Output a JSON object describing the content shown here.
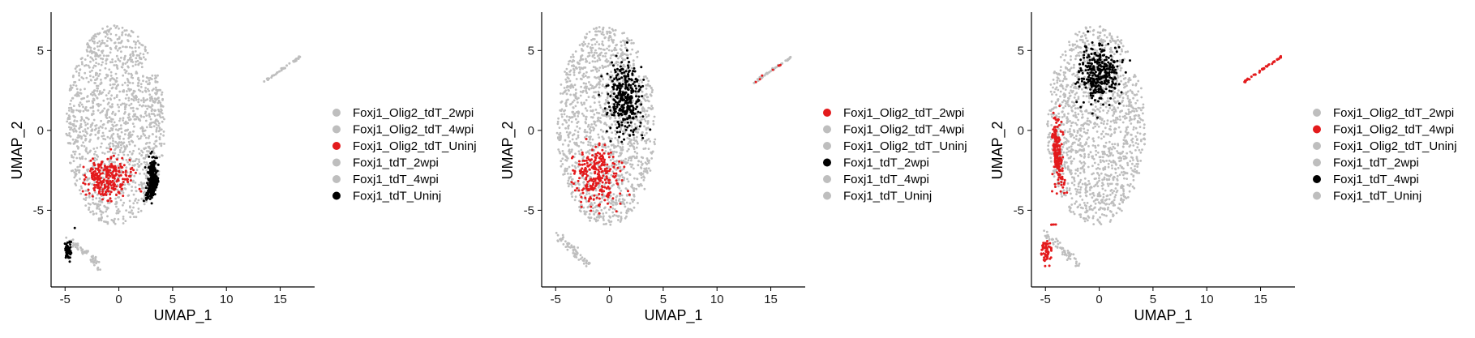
{
  "chart_data": [
    {
      "type": "scatter",
      "xlabel": "UMAP_1",
      "ylabel": "UMAP_2",
      "xlim": [
        -6.3,
        18.2
      ],
      "ylim": [
        -9.8,
        7.3
      ],
      "xticks": [
        -5,
        0,
        5,
        10,
        15
      ],
      "yticks": [
        -5,
        0,
        5
      ],
      "legend_position": "right",
      "series": [
        {
          "name": "Foxj1_Olig2_tdT_2wpi",
          "color": "#bebebe"
        },
        {
          "name": "Foxj1_Olig2_tdT_4wpi",
          "color": "#bebebe"
        },
        {
          "name": "Foxj1_Olig2_tdT_Uninj",
          "color": "#e31a1c"
        },
        {
          "name": "Foxj1_tdT_2wpi",
          "color": "#bebebe"
        },
        {
          "name": "Foxj1_tdT_4wpi",
          "color": "#bebebe"
        },
        {
          "name": "Foxj1_tdT_Uninj",
          "color": "#000000"
        }
      ]
    },
    {
      "type": "scatter",
      "xlabel": "UMAP_1",
      "ylabel": "UMAP_2",
      "xlim": [
        -6.3,
        18.2
      ],
      "ylim": [
        -9.8,
        7.3
      ],
      "xticks": [
        -5,
        0,
        5,
        10,
        15
      ],
      "yticks": [
        -5,
        0,
        5
      ],
      "legend_position": "right",
      "series": [
        {
          "name": "Foxj1_Olig2_tdT_2wpi",
          "color": "#e31a1c"
        },
        {
          "name": "Foxj1_Olig2_tdT_4wpi",
          "color": "#bebebe"
        },
        {
          "name": "Foxj1_Olig2_tdT_Uninj",
          "color": "#bebebe"
        },
        {
          "name": "Foxj1_tdT_2wpi",
          "color": "#000000"
        },
        {
          "name": "Foxj1_tdT_4wpi",
          "color": "#bebebe"
        },
        {
          "name": "Foxj1_tdT_Uninj",
          "color": "#bebebe"
        }
      ]
    },
    {
      "type": "scatter",
      "xlabel": "UMAP_1",
      "ylabel": "UMAP_2",
      "xlim": [
        -6.3,
        18.2
      ],
      "ylim": [
        -9.8,
        7.3
      ],
      "xticks": [
        -5,
        0,
        5,
        10,
        15
      ],
      "yticks": [
        -5,
        0,
        5
      ],
      "legend_position": "right",
      "series": [
        {
          "name": "Foxj1_Olig2_tdT_2wpi",
          "color": "#bebebe"
        },
        {
          "name": "Foxj1_Olig2_tdT_4wpi",
          "color": "#e31a1c"
        },
        {
          "name": "Foxj1_Olig2_tdT_Uninj",
          "color": "#bebebe"
        },
        {
          "name": "Foxj1_tdT_2wpi",
          "color": "#bebebe"
        },
        {
          "name": "Foxj1_tdT_4wpi",
          "color": "#000000"
        },
        {
          "name": "Foxj1_tdT_Uninj",
          "color": "#bebebe"
        }
      ]
    }
  ]
}
